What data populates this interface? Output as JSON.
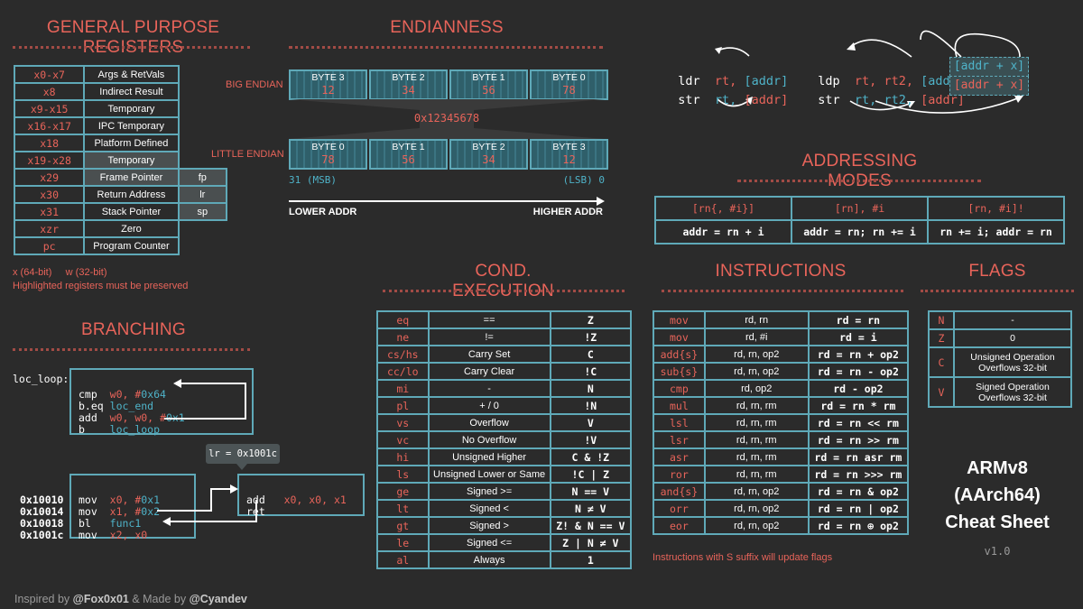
{
  "gpr": {
    "title": "GENERAL PURPOSE REGISTERS",
    "rows": [
      {
        "reg": "x0-x7",
        "desc": "Args & RetVals",
        "alias": ""
      },
      {
        "reg": "x8",
        "desc": "Indirect Result",
        "alias": ""
      },
      {
        "reg": "x9-x15",
        "desc": "Temporary",
        "alias": ""
      },
      {
        "reg": "x16-x17",
        "desc": "IPC Temporary",
        "alias": ""
      },
      {
        "reg": "x18",
        "desc": "Platform Defined",
        "alias": ""
      },
      {
        "reg": "x19-x28",
        "desc": "Temporary",
        "alias": ""
      },
      {
        "reg": "x29",
        "desc": "Frame Pointer",
        "alias": "fp"
      },
      {
        "reg": "x30",
        "desc": "Return Address",
        "alias": "lr"
      },
      {
        "reg": "x31",
        "desc": "Stack Pointer",
        "alias": "sp"
      },
      {
        "reg": "xzr",
        "desc": "Zero",
        "alias": ""
      },
      {
        "reg": "pc",
        "desc": "Program Counter",
        "alias": ""
      }
    ],
    "note1": "x (64-bit)     w (32-bit)",
    "note2": "Highlighted registers must be preserved"
  },
  "endian": {
    "title": "ENDIANNESS",
    "big_label": "BIG ENDIAN",
    "little_label": "LITTLE ENDIAN",
    "big": [
      {
        "b": "BYTE 3",
        "v": "12"
      },
      {
        "b": "BYTE 2",
        "v": "34"
      },
      {
        "b": "BYTE 1",
        "v": "56"
      },
      {
        "b": "BYTE 0",
        "v": "78"
      }
    ],
    "little": [
      {
        "b": "BYTE 0",
        "v": "78"
      },
      {
        "b": "BYTE 1",
        "v": "56"
      },
      {
        "b": "BYTE 2",
        "v": "34"
      },
      {
        "b": "BYTE 3",
        "v": "12"
      }
    ],
    "value": "0x12345678",
    "msb": "31 (MSB)",
    "lsb": "(LSB) 0",
    "lower": "LOWER ADDR",
    "higher": "HIGHER ADDR"
  },
  "loadstore": {
    "ldr": "ldr",
    "str": "str",
    "ldp": "ldp",
    "stp": "stp",
    "rt": "rt,",
    "addr": "[addr]",
    "rt2": "rt2,",
    "addrx": "[addr + x]"
  },
  "addressing": {
    "title": "ADDRESSING MODES",
    "headers": [
      "[rn{, #i}]",
      "[rn], #i",
      "[rn, #i]!"
    ],
    "values": [
      "addr = rn + i",
      "addr = rn; rn += i",
      "rn += i; addr = rn"
    ]
  },
  "branching": {
    "title": "BRANCHING",
    "label": "loc_loop:",
    "loop_ops": [
      "cmp",
      "b.eq",
      "add",
      "b"
    ],
    "lr_bubble": "lr = 0x1001c",
    "addrs": [
      "0x10010",
      "0x10014",
      "0x10018",
      "0x1001c"
    ],
    "call_ops": [
      "mov",
      "mov",
      "bl",
      "mov"
    ],
    "func_ops": [
      "add",
      "ret"
    ]
  },
  "cond": {
    "title": "COND. EXECUTION",
    "rows": [
      {
        "c": "eq",
        "d": "==",
        "f": "Z"
      },
      {
        "c": "ne",
        "d": "!=",
        "f": "!Z"
      },
      {
        "c": "cs/hs",
        "d": "Carry Set",
        "f": "C"
      },
      {
        "c": "cc/lo",
        "d": "Carry Clear",
        "f": "!C"
      },
      {
        "c": "mi",
        "d": "-",
        "f": "N"
      },
      {
        "c": "pl",
        "d": "+ / 0",
        "f": "!N"
      },
      {
        "c": "vs",
        "d": "Overflow",
        "f": "V"
      },
      {
        "c": "vc",
        "d": "No Overflow",
        "f": "!V"
      },
      {
        "c": "hi",
        "d": "Unsigned Higher",
        "f": "C & !Z"
      },
      {
        "c": "ls",
        "d": "Unsigned Lower or Same",
        "f": "!C | Z"
      },
      {
        "c": "ge",
        "d": "Signed >=",
        "f": "N == V"
      },
      {
        "c": "lt",
        "d": "Signed <",
        "f": "N ≠ V"
      },
      {
        "c": "gt",
        "d": "Signed >",
        "f": "Z! & N == V"
      },
      {
        "c": "le",
        "d": "Signed <=",
        "f": "Z | N ≠ V"
      },
      {
        "c": "al",
        "d": "Always",
        "f": "1"
      }
    ]
  },
  "instr": {
    "title": "INSTRUCTIONS",
    "rows": [
      {
        "i": "mov",
        "o": "rd, rn",
        "e": "rd = rn"
      },
      {
        "i": "mov",
        "o": "rd, #i",
        "e": "rd = i"
      },
      {
        "i": "add{s}",
        "o": "rd, rn, op2",
        "e": "rd = rn + op2"
      },
      {
        "i": "sub{s}",
        "o": "rd, rn, op2",
        "e": "rd = rn - op2"
      },
      {
        "i": "cmp",
        "o": "rd, op2",
        "e": "rd - op2"
      },
      {
        "i": "mul",
        "o": "rd, rn, rm",
        "e": "rd = rn * rm"
      },
      {
        "i": "lsl",
        "o": "rd, rn, rm",
        "e": "rd = rn << rm"
      },
      {
        "i": "lsr",
        "o": "rd, rn, rm",
        "e": "rd = rn >> rm"
      },
      {
        "i": "asr",
        "o": "rd, rn, rm",
        "e": "rd = rn asr rm"
      },
      {
        "i": "ror",
        "o": "rd, rn, rm",
        "e": "rd = rn >>> rm"
      },
      {
        "i": "and{s}",
        "o": "rd, rn, op2",
        "e": "rd = rn & op2"
      },
      {
        "i": "orr",
        "o": "rd, rn, op2",
        "e": "rd = rn | op2"
      },
      {
        "i": "eor",
        "o": "rd, rn, op2",
        "e": "rd = rn ⊕ op2"
      }
    ],
    "note": "Instructions with S suffix will update flags"
  },
  "flags": {
    "title": "FLAGS",
    "rows": [
      {
        "f": "N",
        "d": "-"
      },
      {
        "f": "Z",
        "d": "0"
      },
      {
        "f": "C",
        "d": "Unsigned Operation Overflows 32-bit"
      },
      {
        "f": "V",
        "d": "Signed Operation Overflows 32-bit"
      }
    ]
  },
  "brand": {
    "line1": "ARMv8",
    "line2": "(AArch64)",
    "line3": "Cheat Sheet",
    "version": "v1.0"
  },
  "footer": {
    "a": "Inspired by ",
    "b": "@Fox0x01",
    "c": " & Made by ",
    "d": "@Cyandev"
  }
}
